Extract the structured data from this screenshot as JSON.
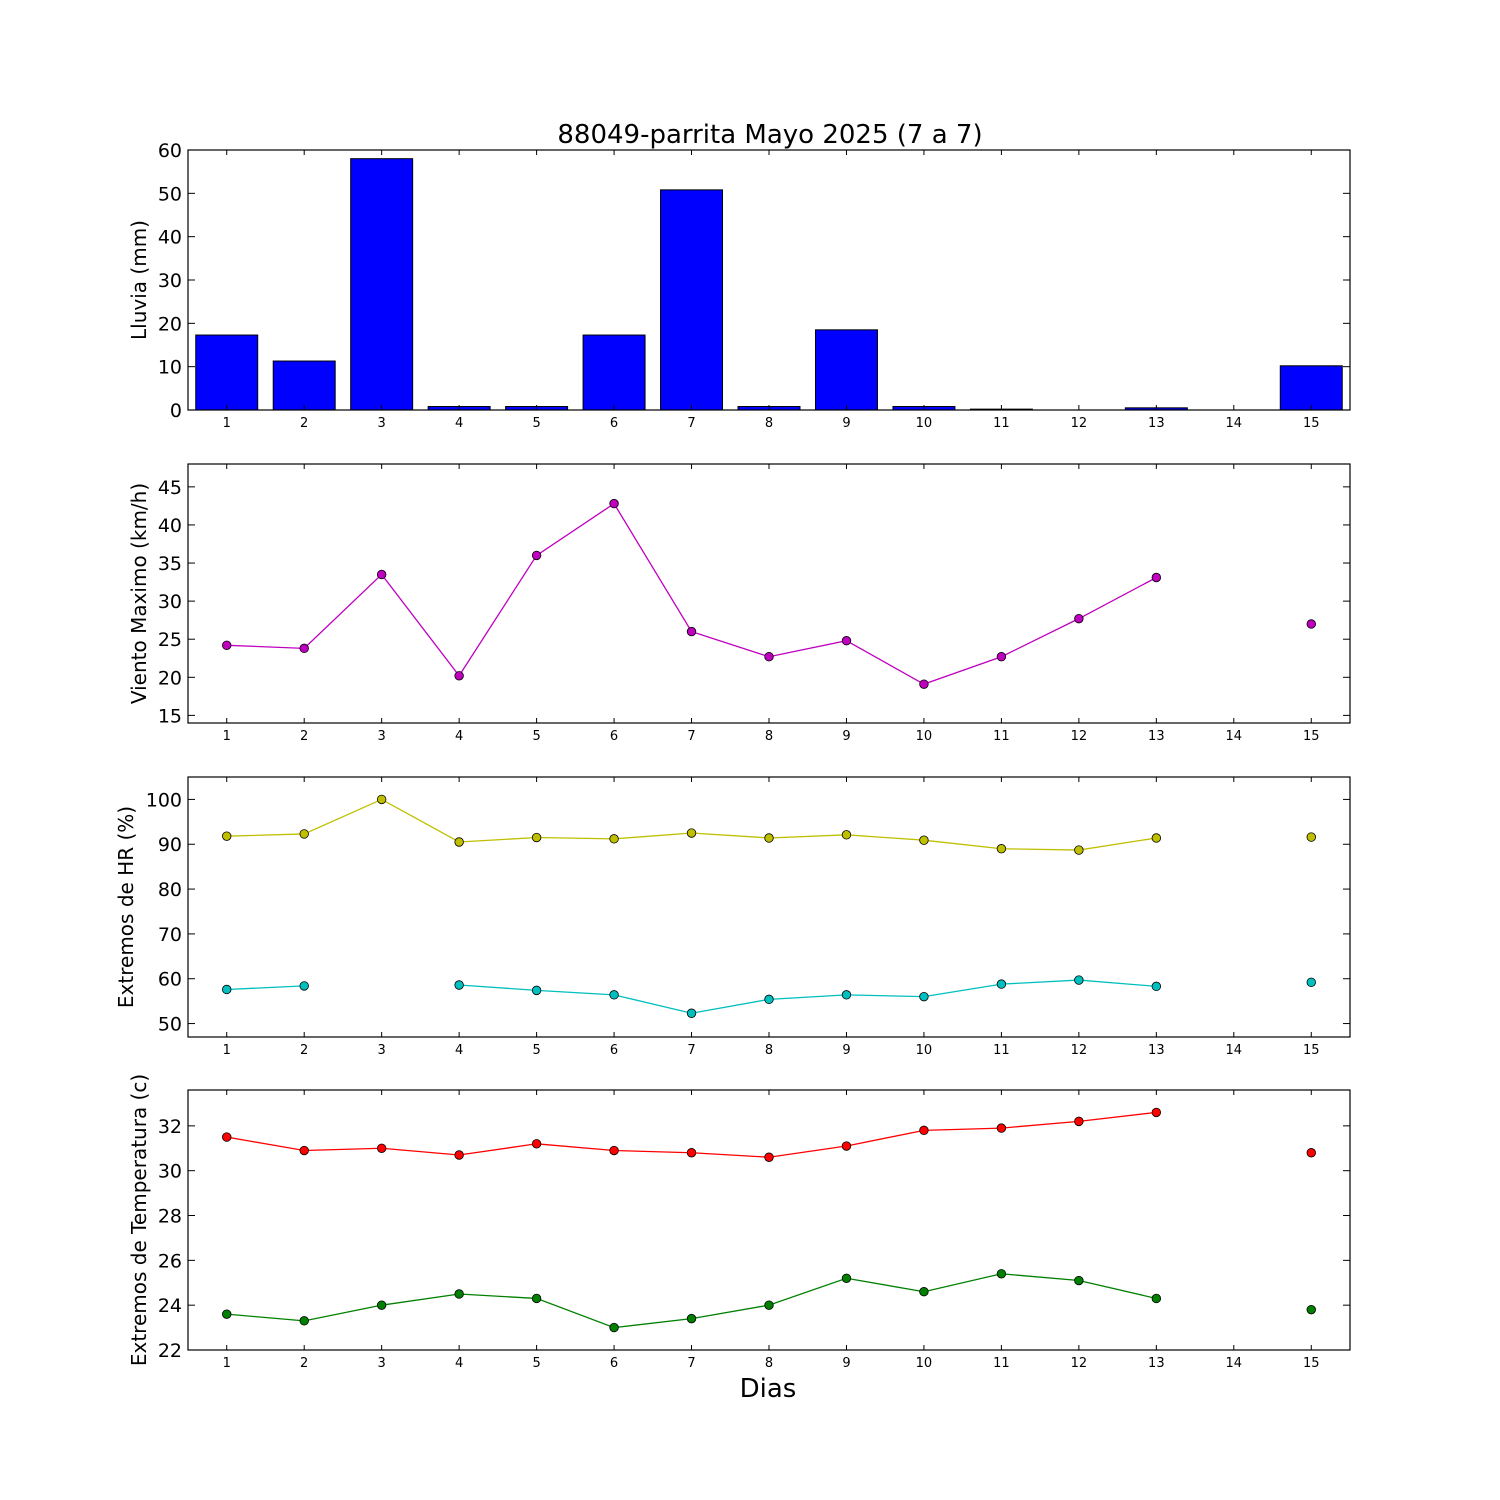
{
  "figure": {
    "title": "88049-parrita Mayo 2025  (7 a 7)",
    "xlabel": "Dias"
  },
  "chart_data": [
    {
      "type": "bar",
      "ylabel": "Lluvia (mm)",
      "x": [
        1,
        2,
        3,
        4,
        5,
        6,
        7,
        8,
        9,
        10,
        11,
        12,
        13,
        14,
        15
      ],
      "xlim": [
        0.5,
        15.5
      ],
      "ylim": [
        0,
        60
      ],
      "yticks": [
        0,
        10,
        20,
        30,
        40,
        50,
        60
      ],
      "series": [
        {
          "color": "#0000ff",
          "values": [
            17.3,
            11.3,
            58.0,
            0.8,
            0.8,
            17.3,
            50.8,
            0.8,
            18.5,
            0.8,
            0.2,
            0.0,
            0.5,
            null,
            10.2
          ]
        }
      ]
    },
    {
      "type": "line",
      "ylabel": "Viento Maximo (km/h)",
      "x": [
        1,
        2,
        3,
        4,
        5,
        6,
        7,
        8,
        9,
        10,
        11,
        12,
        13,
        14,
        15
      ],
      "xlim": [
        0.5,
        15.5
      ],
      "ylim": [
        14,
        48
      ],
      "yticks": [
        15,
        20,
        25,
        30,
        35,
        40,
        45
      ],
      "series": [
        {
          "color": "#bf00bf",
          "values": [
            24.2,
            23.8,
            33.5,
            20.2,
            36.0,
            42.8,
            26.0,
            22.7,
            24.8,
            19.1,
            22.7,
            27.7,
            33.1,
            null,
            27.0
          ]
        }
      ]
    },
    {
      "type": "line",
      "ylabel": "Extremos de HR (%)",
      "x": [
        1,
        2,
        3,
        4,
        5,
        6,
        7,
        8,
        9,
        10,
        11,
        12,
        13,
        14,
        15
      ],
      "xlim": [
        0.5,
        15.5
      ],
      "ylim": [
        47,
        105
      ],
      "yticks": [
        50,
        60,
        70,
        80,
        90,
        100
      ],
      "series": [
        {
          "color": "#bfbf00",
          "values": [
            91.8,
            92.3,
            100.0,
            90.5,
            91.5,
            91.2,
            92.5,
            91.4,
            92.1,
            90.9,
            89.0,
            88.7,
            91.4,
            null,
            91.6
          ]
        },
        {
          "color": "#00bfbf",
          "values": [
            57.6,
            58.4,
            null,
            58.6,
            57.4,
            56.4,
            52.3,
            55.4,
            56.4,
            56.0,
            58.8,
            59.7,
            58.3,
            null,
            59.2
          ]
        }
      ]
    },
    {
      "type": "line",
      "ylabel": "Extremos de Temperatura (c)",
      "x": [
        1,
        2,
        3,
        4,
        5,
        6,
        7,
        8,
        9,
        10,
        11,
        12,
        13,
        14,
        15
      ],
      "xlim": [
        0.5,
        15.5
      ],
      "ylim": [
        22,
        33.6
      ],
      "yticks": [
        22,
        24,
        26,
        28,
        30,
        32
      ],
      "series": [
        {
          "color": "#ff0000",
          "values": [
            31.5,
            30.9,
            31.0,
            30.7,
            31.2,
            30.9,
            30.8,
            30.6,
            31.1,
            31.8,
            31.9,
            32.2,
            32.6,
            null,
            30.8
          ]
        },
        {
          "color": "#008000",
          "values": [
            23.6,
            23.3,
            24.0,
            24.5,
            24.3,
            23.0,
            23.4,
            24.0,
            25.2,
            24.6,
            25.4,
            25.1,
            24.3,
            null,
            23.8
          ]
        }
      ]
    }
  ]
}
